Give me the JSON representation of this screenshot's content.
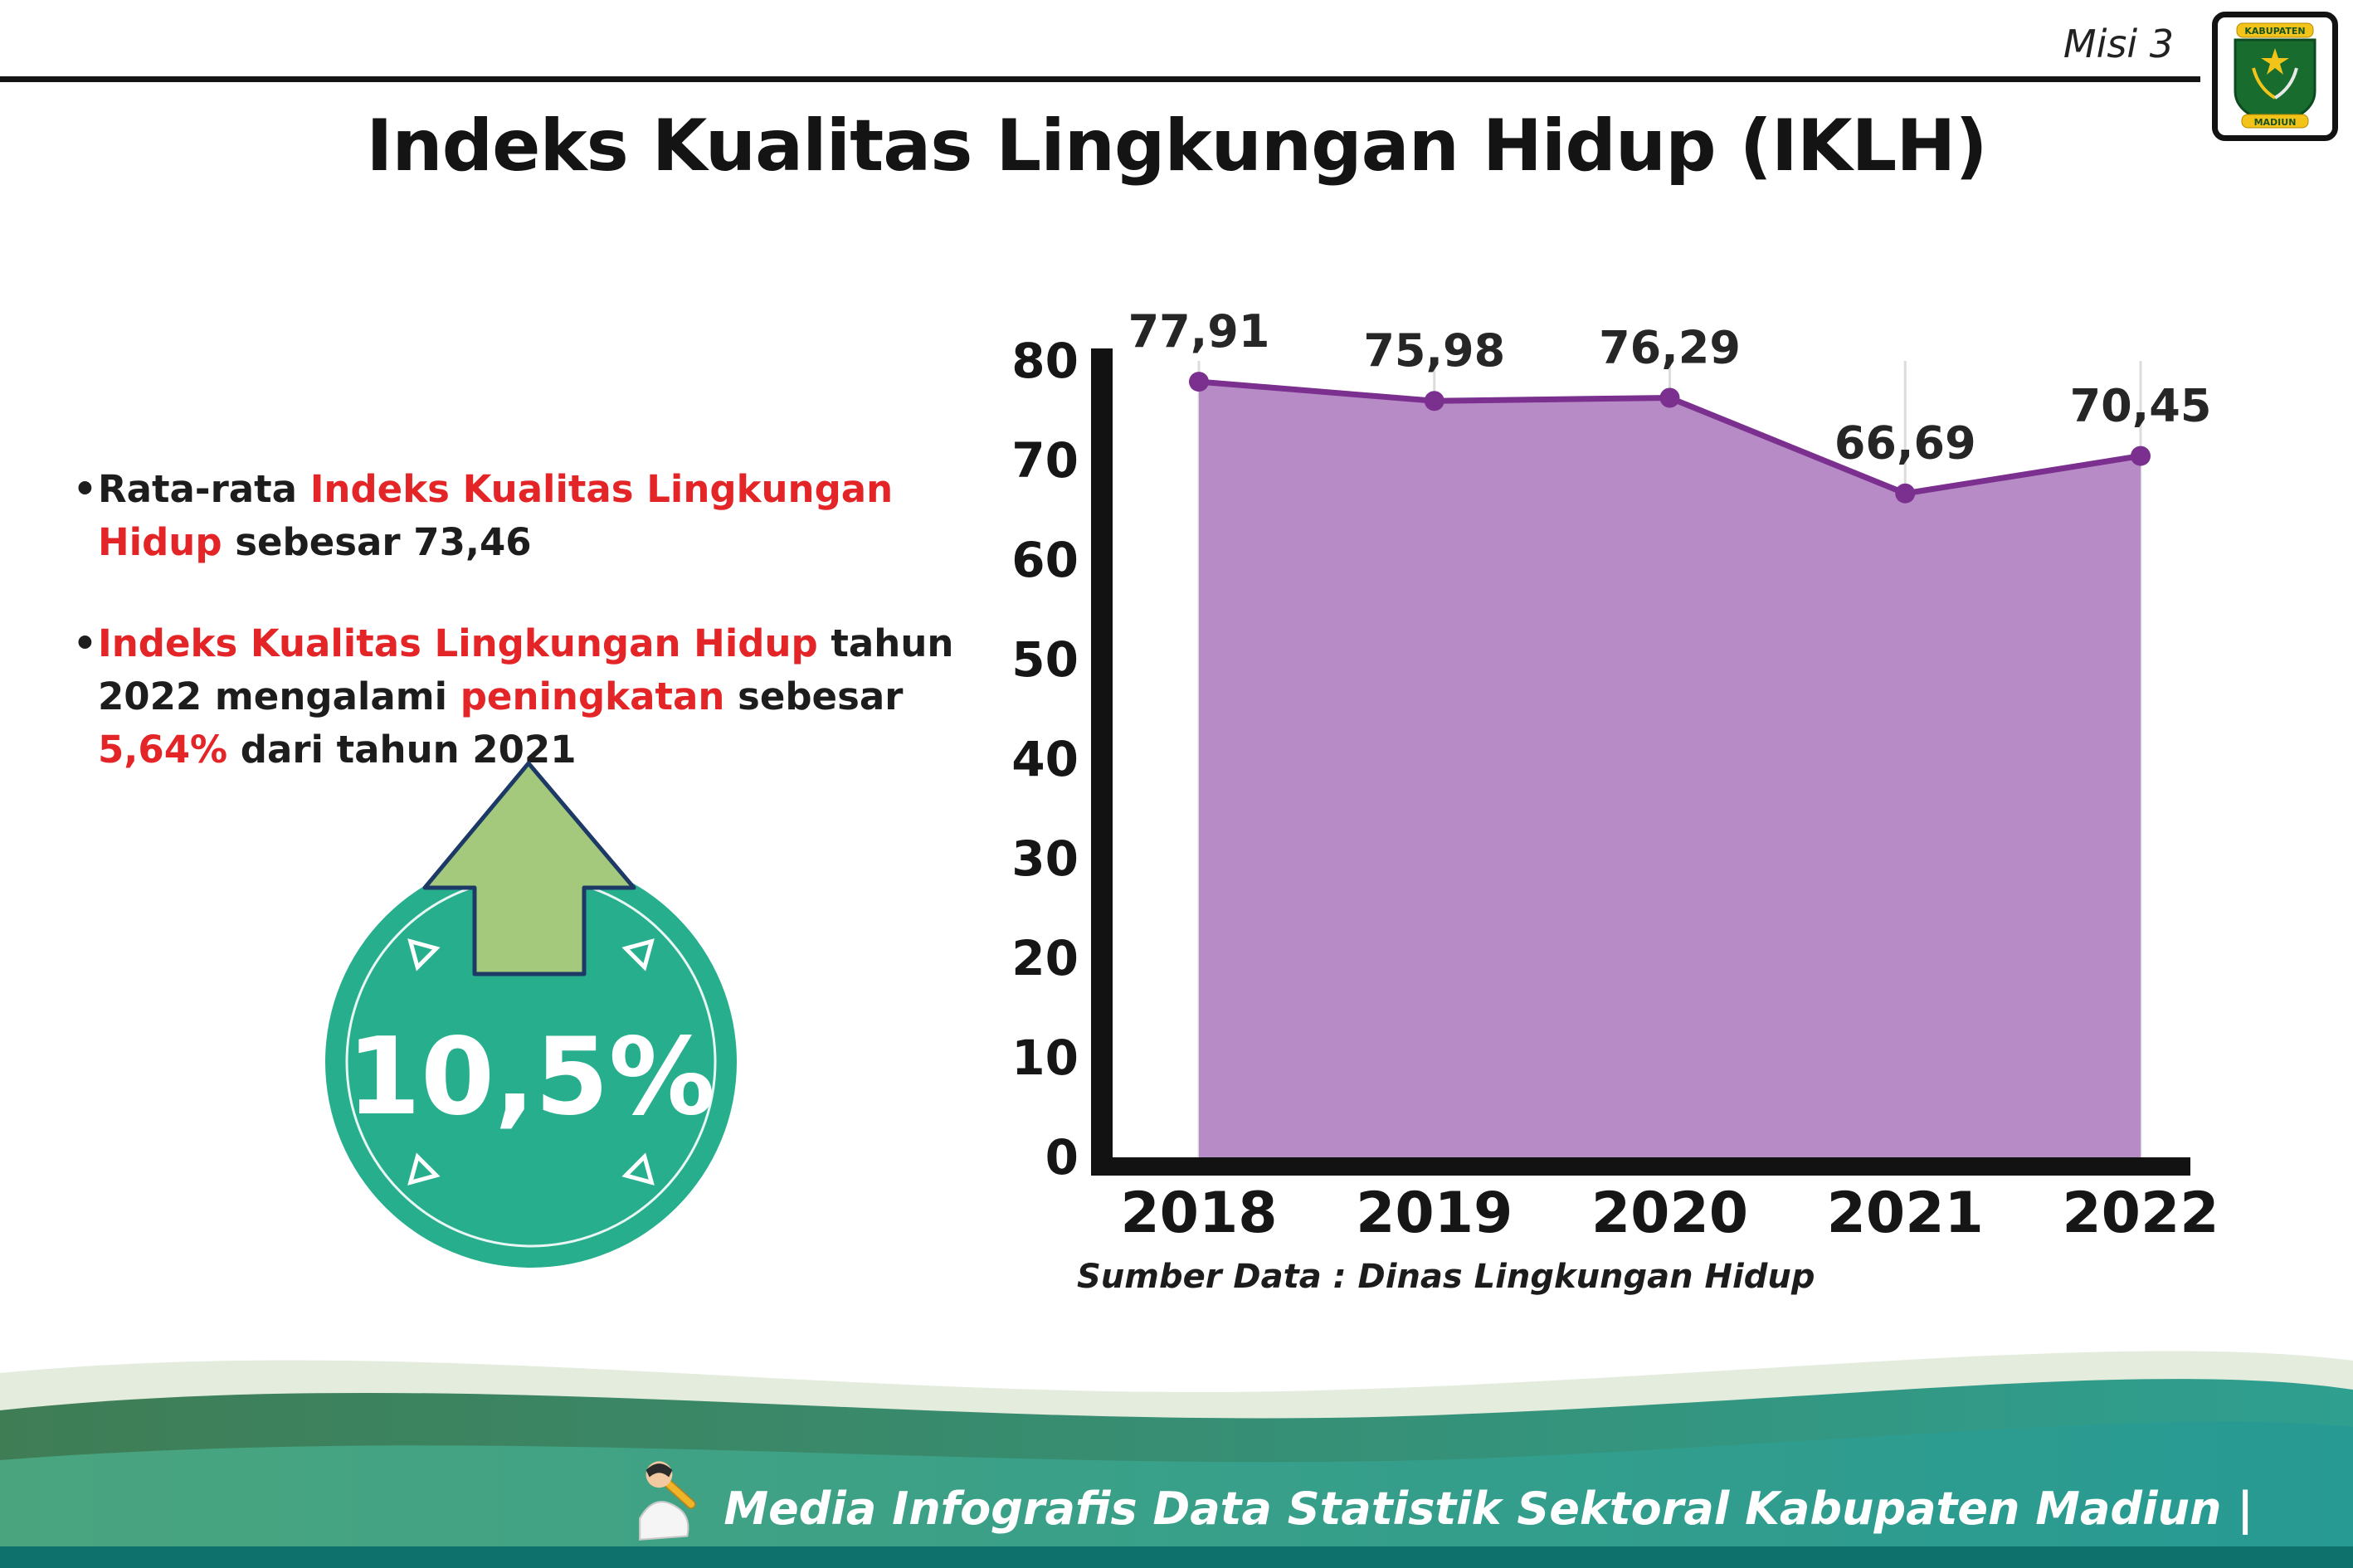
{
  "theme": {
    "red": "#e42528",
    "teal_badge": "#27ae8d",
    "arrow_green": "#a4c97c",
    "arrow_outline": "#1d3a66",
    "chart_fill": "#b78bc5",
    "chart_line": "#7b2f8e",
    "footer_strip": "#0e716c"
  },
  "header": {
    "misi_label": "Misi 3",
    "title": "Indeks Kualitas Lingkungan Hidup (IKLH)"
  },
  "logo": {
    "top_text": "KABUPATEN",
    "bottom_text": "MADIUN"
  },
  "bullets": [
    {
      "parts": [
        {
          "text": "Rata-rata ",
          "style": "normal"
        },
        {
          "text": "Indeks Kualitas Lingkungan Hidup",
          "style": "red"
        },
        {
          "text": " sebesar 73,46",
          "style": "normal"
        }
      ]
    },
    {
      "parts": [
        {
          "text": "Indeks Kualitas Lingkungan Hidup",
          "style": "red"
        },
        {
          "text": " tahun 2022 mengalami ",
          "style": "normal"
        },
        {
          "text": "peningkatan",
          "style": "red"
        },
        {
          "text": " sebesar ",
          "style": "normal"
        },
        {
          "text": "5,64%",
          "style": "red"
        },
        {
          "text": " dari tahun 2021",
          "style": "normal"
        }
      ]
    }
  ],
  "badge": {
    "value": "10,5%"
  },
  "chart_data": {
    "type": "area",
    "title": "Indeks Kualitas Lingkungan Hidup (IKLH)",
    "categories": [
      "2018",
      "2019",
      "2020",
      "2021",
      "2022"
    ],
    "values": [
      77.91,
      75.98,
      76.29,
      66.69,
      70.45
    ],
    "value_labels": [
      "77,91",
      "75,98",
      "76,29",
      "66,69",
      "70,45"
    ],
    "xlabel": "",
    "ylabel": "",
    "ylim": [
      0,
      80
    ],
    "yticks": [
      0,
      10,
      20,
      30,
      40,
      50,
      60,
      70,
      80
    ],
    "grid": "vertical-light",
    "legend": "none",
    "colors": {
      "fill": "#b78bc5",
      "line": "#7b2f8e"
    }
  },
  "source_note": "Sumber Data : Dinas Lingkungan Hidup",
  "footer": {
    "text": "Media Infografis Data Statistik Sektoral Kabupaten Madiun |"
  }
}
